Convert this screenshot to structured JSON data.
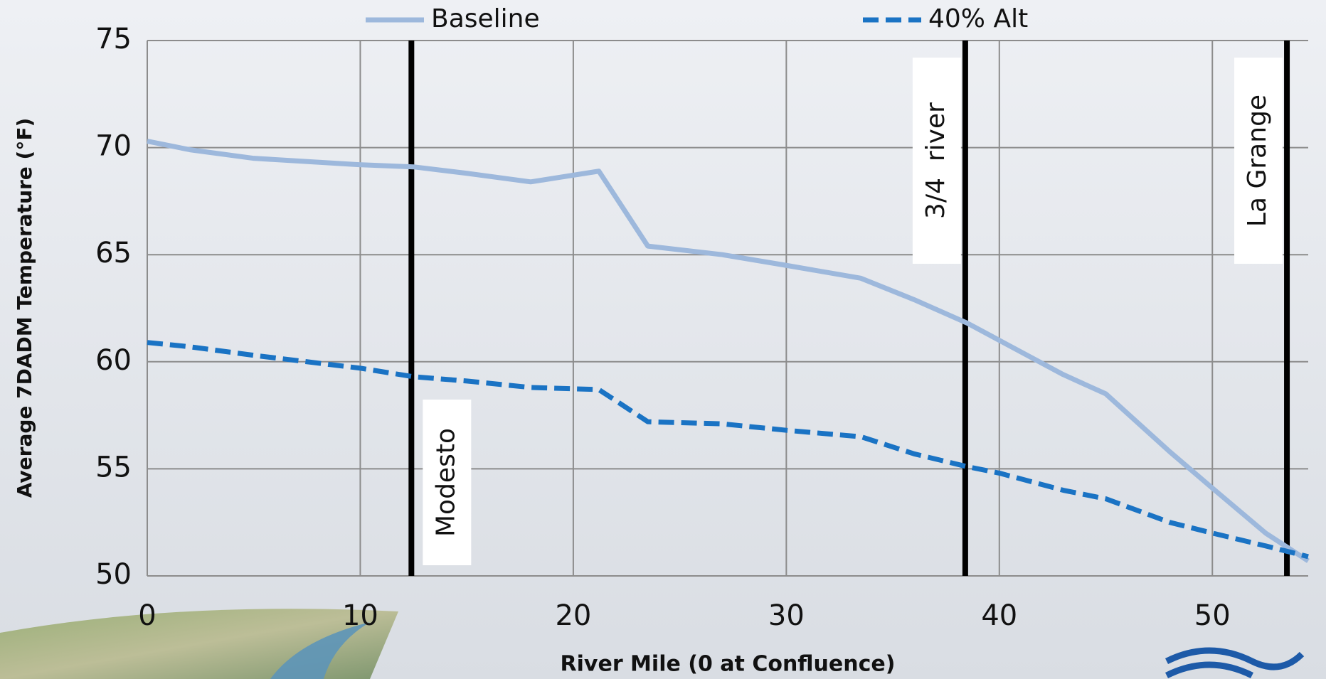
{
  "chart_data": {
    "type": "line",
    "x_label": "River Mile (0 at Confluence)",
    "y_label": "Average 7DADM Temperature (°F)",
    "x": [
      0,
      2,
      5,
      10,
      12.5,
      15,
      18,
      21.2,
      23.5,
      27,
      30,
      33.5,
      36,
      38.5,
      40,
      43,
      45,
      48,
      50,
      52.5,
      54.5
    ],
    "series": [
      {
        "name": "Baseline",
        "color": "#9db8dc",
        "dashed": false,
        "values": [
          70.3,
          69.9,
          69.5,
          69.2,
          69.1,
          68.8,
          68.4,
          68.9,
          65.4,
          65.0,
          64.5,
          63.9,
          62.9,
          61.8,
          61.0,
          59.4,
          58.5,
          55.8,
          54.1,
          52.0,
          50.7
        ]
      },
      {
        "name": "40% Alt",
        "color": "#1a73c4",
        "dashed": true,
        "values": [
          60.9,
          60.7,
          60.3,
          59.7,
          59.3,
          59.1,
          58.8,
          58.7,
          57.2,
          57.1,
          56.8,
          56.5,
          55.7,
          55.1,
          54.8,
          54.0,
          53.6,
          52.5,
          52.0,
          51.4,
          50.9
        ]
      }
    ],
    "annotations": [
      {
        "label": "Modesto",
        "x": 12.4
      },
      {
        "label": "3/4  river",
        "x": 38.4
      },
      {
        "label": "La Grange",
        "x": 53.5
      }
    ],
    "xlim": [
      0,
      54.5
    ],
    "xticks": [
      0,
      10,
      20,
      30,
      40,
      50
    ],
    "ylim": [
      50,
      75
    ],
    "yticks": [
      50,
      55,
      60,
      65,
      70,
      75
    ],
    "grid": true,
    "legend": "top"
  }
}
